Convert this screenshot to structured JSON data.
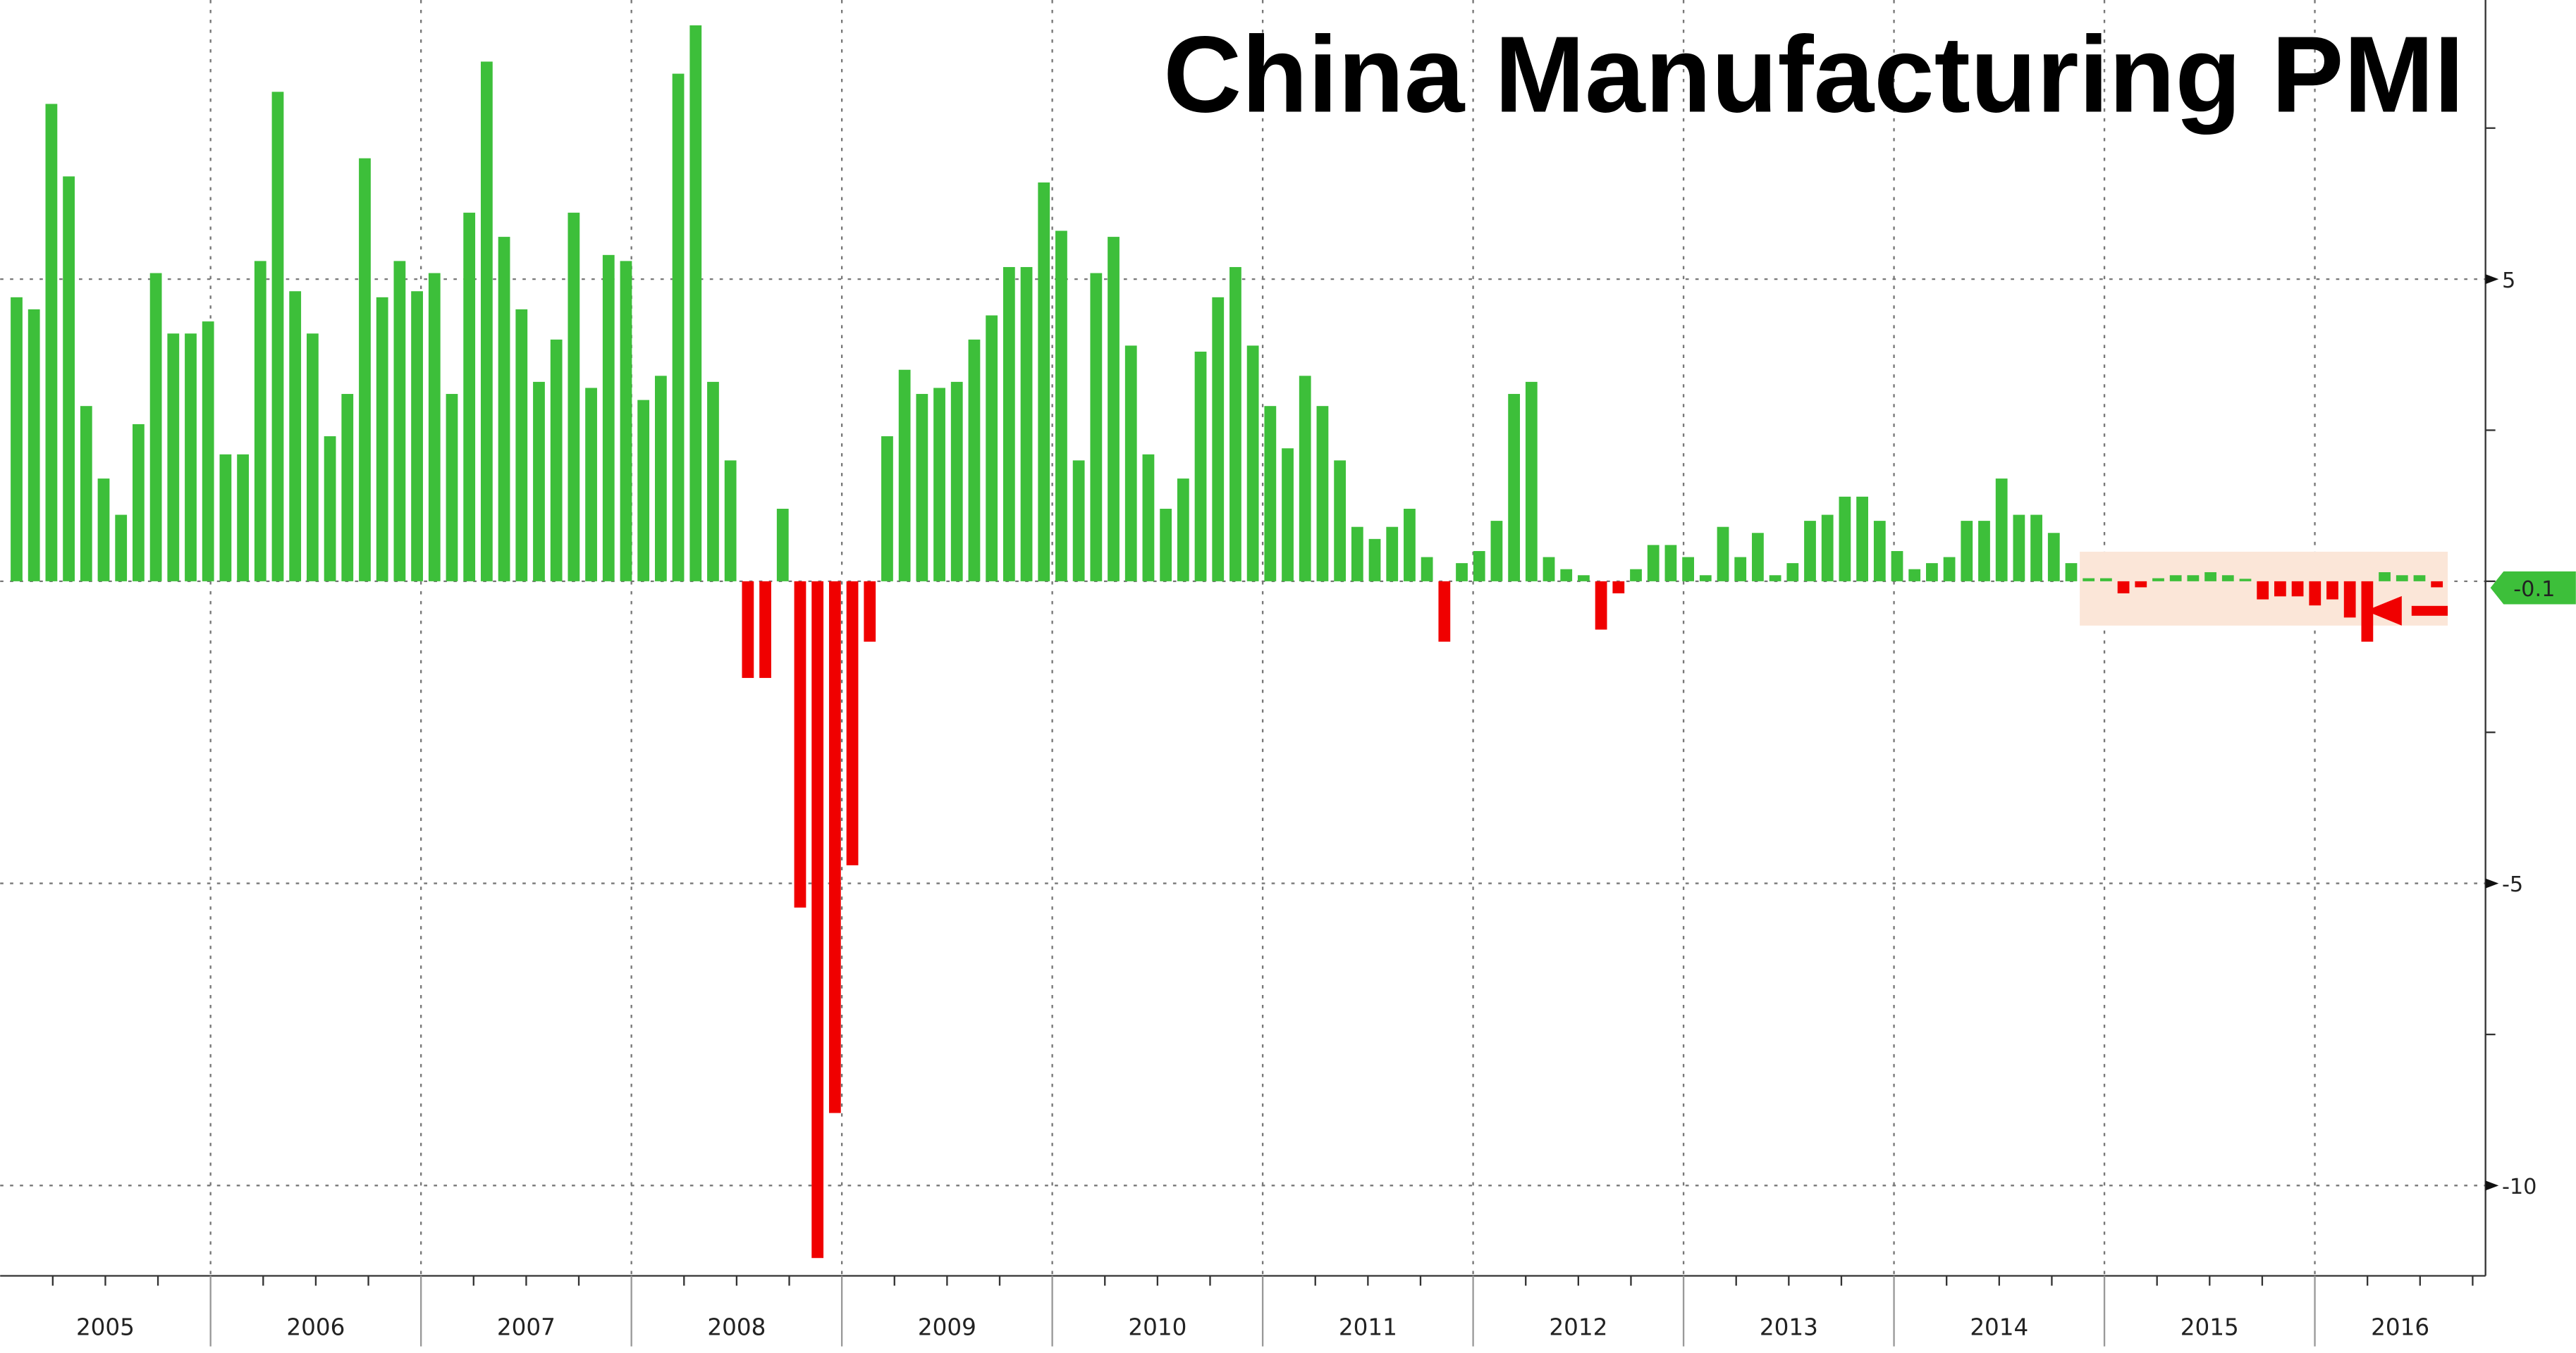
{
  "chart_data": {
    "type": "bar",
    "title": "China Manufacturing PMI",
    "xlabel": "",
    "ylabel": "",
    "ylim": [
      -11.5,
      9.6
    ],
    "yticks": [
      5,
      -5,
      -10
    ],
    "grid": true,
    "years": [
      "2005",
      "2006",
      "2007",
      "2008",
      "2009",
      "2010",
      "2011",
      "2012",
      "2013",
      "2014",
      "2015",
      "2016"
    ],
    "monthly_values_by_year": [
      [
        4.7,
        4.5,
        7.9,
        6.7,
        2.9,
        1.7,
        1.1,
        2.6,
        5.1,
        4.1,
        4.1,
        4.3
      ],
      [
        2.1,
        2.1,
        5.3,
        8.1,
        4.8,
        4.1,
        2.4,
        3.1,
        7.0,
        4.7,
        5.3,
        4.8
      ],
      [
        5.1,
        3.1,
        6.1,
        8.6,
        5.7,
        4.5,
        3.3,
        4.0,
        6.1,
        3.2,
        5.4,
        5.3
      ],
      [
        3.0,
        3.4,
        8.4,
        9.2,
        3.3,
        2.0,
        -1.6,
        -1.6,
        1.2,
        -5.4,
        -11.2,
        -8.8
      ],
      [
        -4.7,
        -1.0,
        2.4,
        3.5,
        3.1,
        3.2,
        3.3,
        4.0,
        4.4,
        5.2,
        5.2,
        6.6
      ],
      [
        5.8,
        2.0,
        5.1,
        5.7,
        3.9,
        2.1,
        1.2,
        1.7,
        3.8,
        4.7,
        5.2,
        3.9
      ],
      [
        2.9,
        2.2,
        3.4,
        2.9,
        2.0,
        0.9,
        0.7,
        0.9,
        1.2,
        0.4,
        -1.0,
        0.3
      ],
      [
        0.5,
        1.0,
        3.1,
        3.3,
        0.4,
        0.2,
        0.1,
        -0.8,
        -0.2,
        0.2,
        0.6,
        0.6
      ],
      [
        0.4,
        0.1,
        0.9,
        0.4,
        0.8,
        0.1,
        0.3,
        1.0,
        1.1,
        1.4,
        1.4,
        1.0
      ],
      [
        0.5,
        0.2,
        0.3,
        0.4,
        1.0,
        1.0,
        1.7,
        1.1,
        1.1,
        0.8,
        0.3,
        0.05
      ],
      [
        0.05,
        -0.2,
        -0.1,
        0.05,
        0.1,
        0.1,
        0.15,
        0.1,
        0.0,
        -0.3,
        -0.25,
        -0.25
      ],
      [
        -0.4,
        -0.3,
        -0.6,
        -1.0,
        0.15,
        0.1,
        0.1,
        -0.1
      ]
    ],
    "last_value_label": "-0.1",
    "colors": {
      "positive": "#3dbf3a",
      "negative": "#f00000",
      "highlight": "#fbe6d8",
      "arrow": "#f00000",
      "tag": "#3dbf3a"
    }
  }
}
